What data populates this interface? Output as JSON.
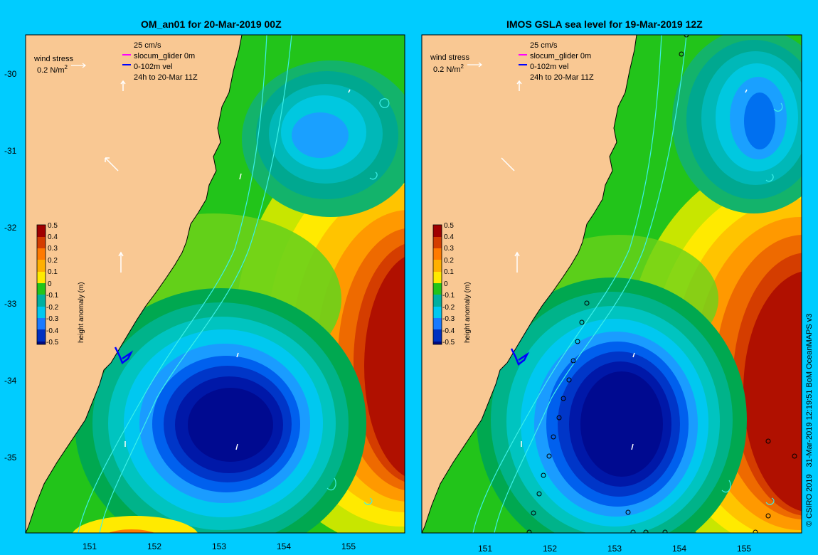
{
  "panels": [
    {
      "title": "OM_an01 for 20-Mar-2019 00Z",
      "wind_label": "wind stress",
      "wind_scale_text": "0.2 N/m",
      "wind_scale_sup": "2",
      "legend_lines": [
        "25 cm/s",
        "slocum_glider 0m",
        "0-102m vel",
        "24h to 20-Mar 11Z"
      ],
      "x_ticks": [
        "151",
        "152",
        "153",
        "154",
        "155"
      ],
      "y_ticks": [
        "-30",
        "-31",
        "-32",
        "-33",
        "-34",
        "-35"
      ]
    },
    {
      "title": "IMOS GSLA sea level  for 19-Mar-2019 12Z",
      "wind_label": "wind stress",
      "wind_scale_text": "0.2 N/m",
      "wind_scale_sup": "2",
      "legend_lines": [
        "25 cm/s",
        "slocum_glider 0m",
        "0-102m vel",
        "24h to 20-Mar 11Z"
      ],
      "x_ticks": [
        "151",
        "152",
        "153",
        "154",
        "155"
      ],
      "y_ticks": []
    }
  ],
  "colorbar": {
    "label": "height anomaly (m)",
    "ticks": [
      "0.5",
      "0.4",
      "0.3",
      "0.2",
      "0.1",
      "0",
      "-0.1",
      "-0.2",
      "-0.3",
      "-0.4",
      "-0.5"
    ]
  },
  "footer": {
    "copyright": "© CSIRO 2019",
    "timestamp": "31-Mar-2019 12:19:51 BoM OceanMAPS v3"
  },
  "colors": {
    "background": "#00ccff",
    "land": "#f9c893",
    "glider": "#ff00ff",
    "velocity": "#0000ff"
  }
}
